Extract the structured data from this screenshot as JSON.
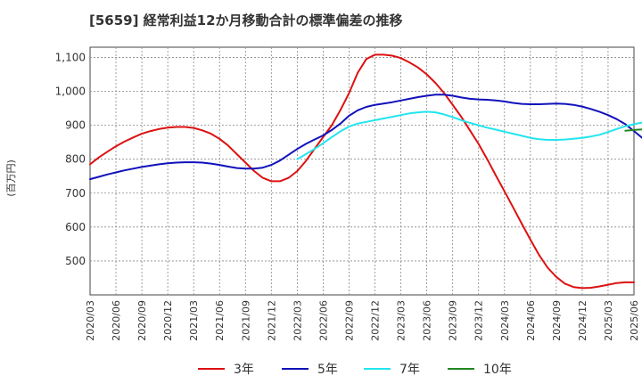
{
  "chart_data": {
    "type": "line",
    "title": "[5659]  経常利益12か月移動合計の標準偏差の推移",
    "ylabel": "(百万円)",
    "xlabel": "",
    "ylim": [
      400,
      1130
    ],
    "yticks": [
      500,
      600,
      700,
      800,
      900,
      1000,
      1100
    ],
    "ytick_labels": [
      "500",
      "600",
      "700",
      "800",
      "900",
      "1,000",
      "1,100"
    ],
    "xticks": [
      "2020/03",
      "2020/06",
      "2020/09",
      "2020/12",
      "2021/03",
      "2021/06",
      "2021/09",
      "2021/12",
      "2022/03",
      "2022/06",
      "2022/09",
      "2022/12",
      "2023/03",
      "2023/06",
      "2023/09",
      "2023/12",
      "2024/03",
      "2024/06",
      "2024/09",
      "2024/12",
      "2025/03",
      "2025/06"
    ],
    "grid": true,
    "legend_position": "bottom",
    "series": [
      {
        "name": "3年",
        "color": "#dd1111",
        "points": [
          [
            "2020/03",
            785
          ],
          [
            "2020/04",
            805
          ],
          [
            "2020/05",
            822
          ],
          [
            "2020/06",
            838
          ],
          [
            "2020/07",
            852
          ],
          [
            "2020/08",
            864
          ],
          [
            "2020/09",
            875
          ],
          [
            "2020/10",
            883
          ],
          [
            "2020/11",
            889
          ],
          [
            "2020/12",
            893
          ],
          [
            "2021/01",
            895
          ],
          [
            "2021/02",
            895
          ],
          [
            "2021/03",
            892
          ],
          [
            "2021/04",
            885
          ],
          [
            "2021/05",
            875
          ],
          [
            "2021/06",
            860
          ],
          [
            "2021/07",
            840
          ],
          [
            "2021/08",
            815
          ],
          [
            "2021/09",
            790
          ],
          [
            "2021/10",
            765
          ],
          [
            "2021/11",
            745
          ],
          [
            "2021/12",
            735
          ],
          [
            "2022/01",
            735
          ],
          [
            "2022/02",
            745
          ],
          [
            "2022/03",
            765
          ],
          [
            "2022/04",
            795
          ],
          [
            "2022/05",
            830
          ],
          [
            "2022/06",
            865
          ],
          [
            "2022/07",
            900
          ],
          [
            "2022/08",
            945
          ],
          [
            "2022/09",
            995
          ],
          [
            "2022/10",
            1055
          ],
          [
            "2022/11",
            1095
          ],
          [
            "2022/12",
            1108
          ],
          [
            "2023/01",
            1108
          ],
          [
            "2023/02",
            1105
          ],
          [
            "2023/03",
            1098
          ],
          [
            "2023/04",
            1085
          ],
          [
            "2023/05",
            1070
          ],
          [
            "2023/06",
            1050
          ],
          [
            "2023/07",
            1025
          ],
          [
            "2023/08",
            995
          ],
          [
            "2023/09",
            960
          ],
          [
            "2023/10",
            925
          ],
          [
            "2023/11",
            885
          ],
          [
            "2023/12",
            845
          ],
          [
            "2024/01",
            800
          ],
          [
            "2024/02",
            752
          ],
          [
            "2024/03",
            705
          ],
          [
            "2024/04",
            658
          ],
          [
            "2024/05",
            610
          ],
          [
            "2024/06",
            563
          ],
          [
            "2024/07",
            518
          ],
          [
            "2024/08",
            480
          ],
          [
            "2024/09",
            453
          ],
          [
            "2024/10",
            433
          ],
          [
            "2024/11",
            423
          ],
          [
            "2024/12",
            420
          ],
          [
            "2025/01",
            421
          ],
          [
            "2025/02",
            425
          ],
          [
            "2025/03",
            430
          ],
          [
            "2025/04",
            435
          ],
          [
            "2025/05",
            437
          ],
          [
            "2025/06",
            437
          ]
        ]
      },
      {
        "name": "5年",
        "color": "#1111bb",
        "points": [
          [
            "2020/03",
            741
          ],
          [
            "2020/04",
            748
          ],
          [
            "2020/05",
            755
          ],
          [
            "2020/06",
            761
          ],
          [
            "2020/07",
            767
          ],
          [
            "2020/08",
            772
          ],
          [
            "2020/09",
            777
          ],
          [
            "2020/10",
            781
          ],
          [
            "2020/11",
            785
          ],
          [
            "2020/12",
            788
          ],
          [
            "2021/01",
            790
          ],
          [
            "2021/02",
            791
          ],
          [
            "2021/03",
            791
          ],
          [
            "2021/04",
            790
          ],
          [
            "2021/05",
            787
          ],
          [
            "2021/06",
            783
          ],
          [
            "2021/07",
            778
          ],
          [
            "2021/08",
            774
          ],
          [
            "2021/09",
            772
          ],
          [
            "2021/10",
            772
          ],
          [
            "2021/11",
            775
          ],
          [
            "2021/12",
            783
          ],
          [
            "2022/01",
            796
          ],
          [
            "2022/02",
            813
          ],
          [
            "2022/03",
            830
          ],
          [
            "2022/04",
            845
          ],
          [
            "2022/05",
            858
          ],
          [
            "2022/06",
            870
          ],
          [
            "2022/07",
            886
          ],
          [
            "2022/08",
            905
          ],
          [
            "2022/09",
            928
          ],
          [
            "2022/10",
            944
          ],
          [
            "2022/11",
            954
          ],
          [
            "2022/12",
            960
          ],
          [
            "2023/01",
            964
          ],
          [
            "2023/02",
            968
          ],
          [
            "2023/03",
            973
          ],
          [
            "2023/04",
            978
          ],
          [
            "2023/05",
            983
          ],
          [
            "2023/06",
            987
          ],
          [
            "2023/07",
            990
          ],
          [
            "2023/08",
            990
          ],
          [
            "2023/09",
            987
          ],
          [
            "2023/10",
            982
          ],
          [
            "2023/11",
            978
          ],
          [
            "2023/12",
            976
          ],
          [
            "2024/01",
            975
          ],
          [
            "2024/02",
            973
          ],
          [
            "2024/03",
            970
          ],
          [
            "2024/04",
            966
          ],
          [
            "2024/05",
            963
          ],
          [
            "2024/06",
            962
          ],
          [
            "2024/07",
            962
          ],
          [
            "2024/08",
            963
          ],
          [
            "2024/09",
            964
          ],
          [
            "2024/10",
            963
          ],
          [
            "2024/11",
            960
          ],
          [
            "2024/12",
            955
          ],
          [
            "2025/01",
            948
          ],
          [
            "2025/02",
            940
          ],
          [
            "2025/03",
            930
          ],
          [
            "2025/04",
            918
          ],
          [
            "2025/05",
            903
          ],
          [
            "2025/06",
            883
          ],
          [
            "2025/07",
            862
          ]
        ]
      },
      {
        "name": "7年",
        "color": "#22e5ee",
        "points": [
          [
            "2022/03",
            800
          ],
          [
            "2022/04",
            815
          ],
          [
            "2022/05",
            830
          ],
          [
            "2022/06",
            847
          ],
          [
            "2022/07",
            865
          ],
          [
            "2022/08",
            882
          ],
          [
            "2022/09",
            896
          ],
          [
            "2022/10",
            905
          ],
          [
            "2022/11",
            910
          ],
          [
            "2022/12",
            915
          ],
          [
            "2023/01",
            920
          ],
          [
            "2023/02",
            925
          ],
          [
            "2023/03",
            930
          ],
          [
            "2023/04",
            935
          ],
          [
            "2023/05",
            938
          ],
          [
            "2023/06",
            940
          ],
          [
            "2023/07",
            938
          ],
          [
            "2023/08",
            932
          ],
          [
            "2023/09",
            924
          ],
          [
            "2023/10",
            915
          ],
          [
            "2023/11",
            907
          ],
          [
            "2023/12",
            900
          ],
          [
            "2024/01",
            893
          ],
          [
            "2024/02",
            887
          ],
          [
            "2024/03",
            881
          ],
          [
            "2024/04",
            875
          ],
          [
            "2024/05",
            869
          ],
          [
            "2024/06",
            863
          ],
          [
            "2024/07",
            859
          ],
          [
            "2024/08",
            857
          ],
          [
            "2024/09",
            857
          ],
          [
            "2024/10",
            858
          ],
          [
            "2024/11",
            860
          ],
          [
            "2024/12",
            863
          ],
          [
            "2025/01",
            867
          ],
          [
            "2025/02",
            872
          ],
          [
            "2025/03",
            880
          ],
          [
            "2025/04",
            889
          ],
          [
            "2025/05",
            897
          ],
          [
            "2025/06",
            903
          ],
          [
            "2025/07",
            908
          ]
        ]
      },
      {
        "name": "10年",
        "color": "#228822",
        "points": [
          [
            "2025/05",
            884
          ],
          [
            "2025/06",
            886
          ],
          [
            "2025/07",
            888
          ]
        ]
      }
    ]
  }
}
